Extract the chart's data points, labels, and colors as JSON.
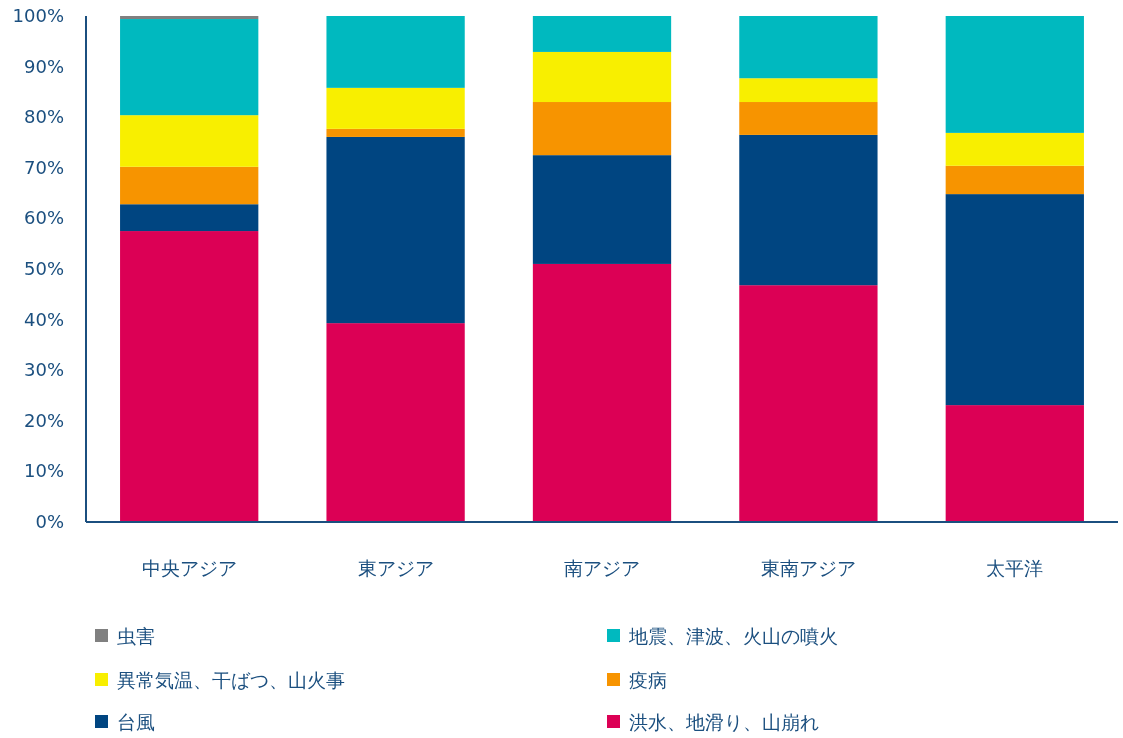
{
  "chart_data": {
    "type": "bar",
    "stacked": true,
    "legend": "bottom",
    "grid": false,
    "categories": [
      "中央アジア",
      "東アジア",
      "南アジア",
      "東南アジア",
      "太平洋"
    ],
    "ylim": [
      0,
      100
    ],
    "yticks": [
      {
        "value": 0,
        "label": "0%"
      },
      {
        "value": 10,
        "label": "10%"
      },
      {
        "value": 20,
        "label": "20%"
      },
      {
        "value": 30,
        "label": "30%"
      },
      {
        "value": 40,
        "label": "40%"
      },
      {
        "value": 50,
        "label": "50%"
      },
      {
        "value": 60,
        "label": "60%"
      },
      {
        "value": 70,
        "label": "70%"
      },
      {
        "value": 80,
        "label": "80%"
      },
      {
        "value": 90,
        "label": "90%"
      },
      {
        "value": 100,
        "label": "100%"
      }
    ],
    "series": [
      {
        "name": "洪水、地滑り、山崩れ",
        "color": "#dc0055",
        "values": [
          57.5,
          39.3,
          51.0,
          46.8,
          23.1
        ]
      },
      {
        "name": "台風",
        "color": "#004581",
        "values": [
          5.3,
          36.8,
          21.5,
          29.7,
          41.7
        ]
      },
      {
        "name": "疫病",
        "color": "#f79400",
        "values": [
          7.4,
          1.6,
          10.5,
          6.5,
          5.6
        ]
      },
      {
        "name": "異常気温、干ばつ、山火事",
        "color": "#f8ef00",
        "values": [
          10.2,
          8.1,
          9.9,
          4.7,
          6.5
        ]
      },
      {
        "name": "地震、津波、火山の噴火",
        "color": "#00b9bf",
        "values": [
          19.0,
          14.2,
          7.1,
          12.3,
          23.1
        ]
      },
      {
        "name": "虫害",
        "color": "#808080",
        "values": [
          0.6,
          0,
          0,
          0,
          0
        ]
      }
    ]
  }
}
